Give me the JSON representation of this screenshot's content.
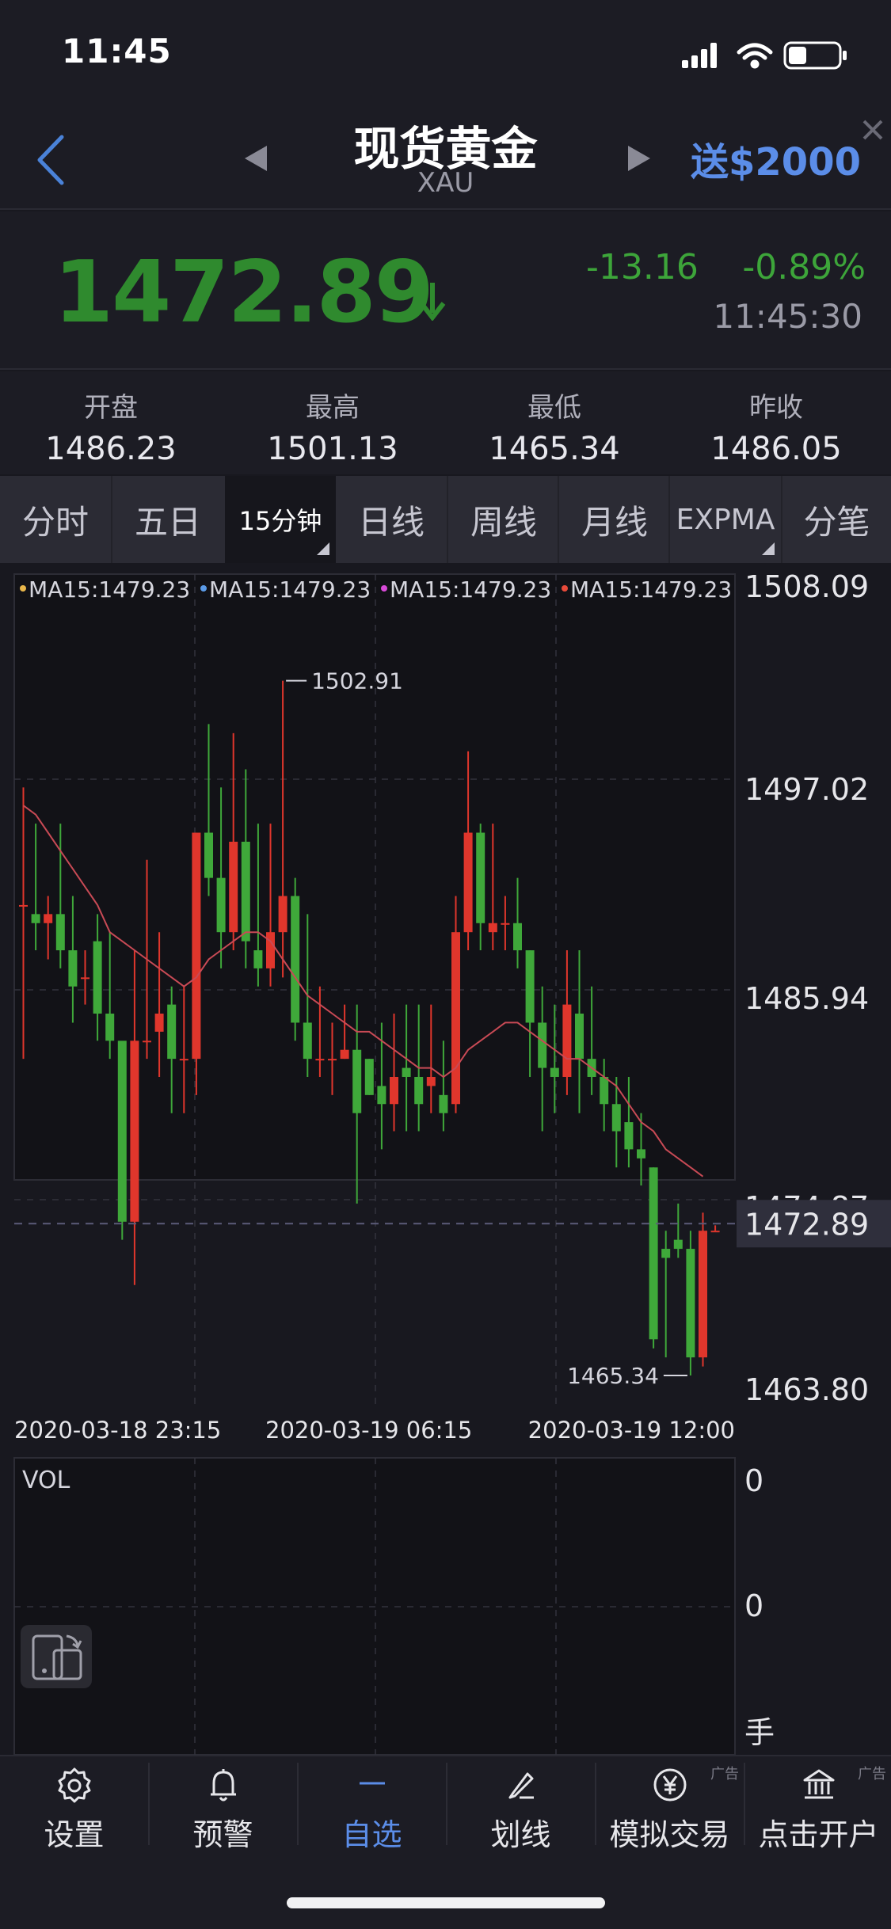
{
  "status": {
    "time": "11:45"
  },
  "nav": {
    "title": "现货黄金",
    "symbol": "XAU",
    "promo": "送$2000"
  },
  "quote": {
    "price": "1472.89",
    "change": "-13.16",
    "change_pct": "-0.89%",
    "time": "11:45:30",
    "color": "#2f8a2e"
  },
  "ohlc": [
    {
      "label": "开盘",
      "value": "1486.23"
    },
    {
      "label": "最高",
      "value": "1501.13"
    },
    {
      "label": "最低",
      "value": "1465.34"
    },
    {
      "label": "昨收",
      "value": "1486.05"
    }
  ],
  "tabs": [
    {
      "label": "分时"
    },
    {
      "label": "五日"
    },
    {
      "label": "15分钟",
      "active": true
    },
    {
      "label": "日线"
    },
    {
      "label": "周线"
    },
    {
      "label": "月线"
    },
    {
      "label": "EXPMA"
    },
    {
      "label": "分笔"
    }
  ],
  "chart": {
    "legend": [
      {
        "text": "MA15:1479.23",
        "color": "#e8b64a"
      },
      {
        "text": "MA15:1479.23",
        "color": "#5b9be8"
      },
      {
        "text": "MA15:1479.23",
        "color": "#d84ad8"
      },
      {
        "text": "MA15:1479.23",
        "color": "#e84a3a"
      }
    ],
    "y_ticks": [
      "1508.09",
      "1497.02",
      "1485.94",
      "1474.87",
      "1463.80"
    ],
    "current_price": "1472.89",
    "high_label": "1502.91",
    "low_label": "1465.34",
    "x_ticks": [
      "2020-03-18 23:15",
      "2020-03-19 06:15",
      "2020-03-19 12:00"
    ],
    "vol_label": "VOL",
    "vol_ticks": [
      "0",
      "0"
    ],
    "vol_unit": "手",
    "up_color": "#e0362c",
    "down_color": "#3fa83a",
    "ma_color": "#c84a55"
  },
  "chart_data": {
    "type": "candlestick",
    "ylim": [
      1463.8,
      1508.09
    ],
    "candles": [
      [
        1490.5,
        1490.5,
        1497,
        1482
      ],
      [
        1490,
        1489.5,
        1495,
        1488
      ],
      [
        1489.5,
        1490,
        1491,
        1487.5
      ],
      [
        1490,
        1488,
        1495,
        1487
      ],
      [
        1488,
        1486,
        1491,
        1484
      ],
      [
        1486.5,
        1486.5,
        1488,
        1485
      ],
      [
        1488.5,
        1484.5,
        1490,
        1483
      ],
      [
        1484.5,
        1483,
        1489,
        1482
      ],
      [
        1483,
        1473,
        1482.5,
        1472
      ],
      [
        1473,
        1483,
        1488,
        1469.5
      ],
      [
        1483,
        1483,
        1493,
        1482
      ],
      [
        1483.5,
        1484.5,
        1489,
        1481
      ],
      [
        1485,
        1482,
        1486,
        1479
      ],
      [
        1482,
        1482,
        1486,
        1479
      ],
      [
        1482,
        1494.5,
        1494.5,
        1480
      ],
      [
        1494.5,
        1492,
        1500.5,
        1491
      ],
      [
        1492,
        1489,
        1497,
        1487
      ],
      [
        1489,
        1494,
        1500,
        1488
      ],
      [
        1494,
        1488.5,
        1498,
        1487
      ],
      [
        1488,
        1487,
        1495,
        1486
      ],
      [
        1487,
        1489,
        1495,
        1486
      ],
      [
        1489,
        1491,
        1502.9,
        1486.5
      ],
      [
        1491,
        1484,
        1492,
        1483
      ],
      [
        1484,
        1482,
        1490,
        1481
      ],
      [
        1482,
        1482,
        1486,
        1481
      ],
      [
        1482,
        1482,
        1484,
        1480
      ],
      [
        1482,
        1482.5,
        1485,
        1482
      ],
      [
        1482.5,
        1479,
        1485,
        1474
      ],
      [
        1482,
        1480,
        1482,
        1480
      ],
      [
        1480.5,
        1479.5,
        1484,
        1477
      ],
      [
        1479.5,
        1481,
        1484.5,
        1478
      ],
      [
        1481.5,
        1481,
        1485,
        1478
      ],
      [
        1481,
        1479.5,
        1485,
        1478
      ],
      [
        1480.5,
        1481,
        1485,
        1479
      ],
      [
        1480,
        1479,
        1483,
        1478
      ],
      [
        1479.5,
        1489,
        1491,
        1479
      ],
      [
        1489,
        1494.5,
        1499,
        1488
      ],
      [
        1494.5,
        1489.5,
        1495,
        1488
      ],
      [
        1489,
        1489.5,
        1495,
        1488
      ],
      [
        1489.5,
        1489.5,
        1491,
        1488
      ],
      [
        1489.5,
        1488,
        1492,
        1487
      ],
      [
        1488,
        1484,
        1488,
        1481
      ],
      [
        1484,
        1481.5,
        1486,
        1478
      ],
      [
        1481.5,
        1481,
        1485,
        1479
      ],
      [
        1481,
        1485,
        1488,
        1480
      ],
      [
        1484.5,
        1482,
        1488,
        1479
      ],
      [
        1482,
        1481,
        1486,
        1480
      ],
      [
        1481,
        1479.5,
        1482,
        1478
      ],
      [
        1479.5,
        1478,
        1481,
        1476
      ],
      [
        1478.5,
        1477,
        1481,
        1476
      ],
      [
        1477,
        1476.5,
        1479,
        1475
      ],
      [
        1476,
        1466.5,
        1476,
        1466
      ],
      [
        1471.5,
        1471,
        1472.5,
        1465.5
      ],
      [
        1472,
        1471.5,
        1474,
        1471
      ],
      [
        1471.5,
        1465.5,
        1472.5,
        1464.5
      ],
      [
        1465.5,
        1472.5,
        1473.5,
        1465
      ],
      [
        1472.5,
        1472.5,
        1472.8,
        1472.5
      ]
    ],
    "ma15": [
      1496,
      1495.5,
      1494.5,
      1493.5,
      1492.5,
      1491.5,
      1490.5,
      1489,
      1488.5,
      1488,
      1487.5,
      1487,
      1486.5,
      1486,
      1486.5,
      1487.5,
      1488,
      1488.5,
      1489,
      1489,
      1488.5,
      1487.5,
      1486.5,
      1485.5,
      1485,
      1484.5,
      1484,
      1483.5,
      1483.5,
      1483,
      1482.5,
      1482,
      1481.5,
      1481.5,
      1481,
      1481.5,
      1482.5,
      1483,
      1483.5,
      1484,
      1484,
      1483.5,
      1483,
      1482.5,
      1482,
      1482,
      1481.5,
      1481,
      1480.5,
      1479.5,
      1478.5,
      1478,
      1477,
      1476.5,
      1476,
      1475.5
    ],
    "x_labels": [
      "2020-03-18 23:15",
      "2020-03-19 06:15",
      "2020-03-19 12:00"
    ]
  },
  "bottom_nav": [
    {
      "label": "设置",
      "icon": "gear-icon"
    },
    {
      "label": "预警",
      "icon": "bell-icon"
    },
    {
      "label": "自选",
      "icon": "dash-icon",
      "active": true
    },
    {
      "label": "划线",
      "icon": "pen-icon"
    },
    {
      "label": "模拟交易",
      "icon": "yen-icon",
      "ad": "广告"
    },
    {
      "label": "点击开户",
      "icon": "bank-icon",
      "ad": "广告"
    }
  ]
}
